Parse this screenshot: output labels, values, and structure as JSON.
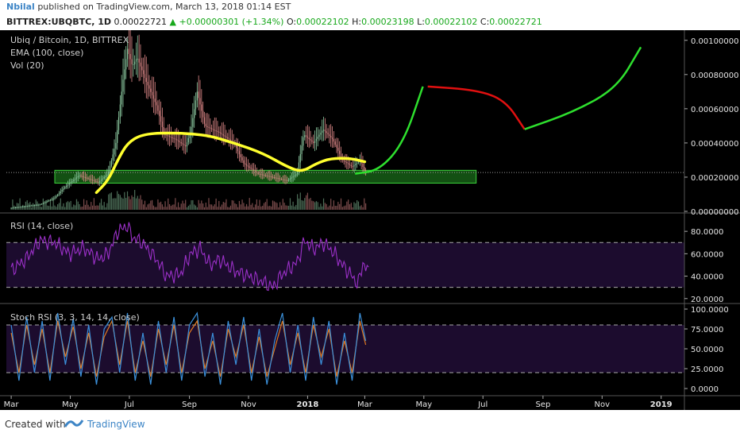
{
  "header": {
    "author": "Nbilal",
    "published_text": "published on TradingView.com, March 13, 2018 01:14 EST",
    "symbol": "BITTREX:UBQBTC, 1D",
    "last": "0.00022721",
    "change": "+0.00000301 (+1.34%)",
    "open_label": "O:",
    "open": "0.00022102",
    "high_label": "H:",
    "high": "0.00023198",
    "low_label": "L:",
    "low": "0.00022102",
    "close_label": "C:",
    "close": "0.00022721"
  },
  "footer": {
    "created_with": "Created with",
    "brand": "TradingView"
  },
  "colors": {
    "background": "#000000",
    "candle_up": "#8cc9a0",
    "candle_down": "#e08a8a",
    "ema": "#ffff2e",
    "box_fill": "#1a6b1a",
    "box_stroke": "#3cd33c",
    "projection_up": "#2ee02e",
    "projection_down": "#e01010",
    "rsi": "#9b30c8",
    "stoch_k": "#3b8fd9",
    "stoch_d": "#e07820",
    "band": "#1c0c2e"
  },
  "chart_data": [
    {
      "type": "candlestick",
      "title": "Ubiq / Bitcoin, 1D, BITTREX",
      "indicators": [
        "EMA (100, close)",
        "Vol (20)"
      ],
      "ytick_labels": [
        "0.00100000",
        "0.00080000",
        "0.00060000",
        "0.00040000",
        "0.00020000",
        "0.00000000"
      ],
      "ylim": [
        0,
        0.00105
      ],
      "last_price": 0.00022721,
      "x_tick_labels": [
        "Mar",
        "May",
        "Jul",
        "Sep",
        "Nov",
        "2018",
        "Mar",
        "May",
        "Jul",
        "Sep",
        "Nov",
        "2019"
      ],
      "x_ticks_days": [
        0,
        61,
        122,
        184,
        245,
        306,
        365,
        426,
        487,
        549,
        610,
        671
      ],
      "xlim_days": [
        -5,
        695
      ],
      "price_close": [
        [
          0,
          2e-05
        ],
        [
          30,
          4e-05
        ],
        [
          45,
          8e-05
        ],
        [
          55,
          0.00014
        ],
        [
          70,
          0.00021
        ],
        [
          90,
          0.00017
        ],
        [
          100,
          0.00022
        ],
        [
          108,
          0.0004
        ],
        [
          115,
          0.00075
        ],
        [
          120,
          0.00095
        ],
        [
          125,
          0.00085
        ],
        [
          130,
          0.0009
        ],
        [
          140,
          0.00075
        ],
        [
          150,
          0.00062
        ],
        [
          158,
          0.00045
        ],
        [
          170,
          0.00042
        ],
        [
          180,
          0.00038
        ],
        [
          185,
          0.00046
        ],
        [
          192,
          0.0007
        ],
        [
          200,
          0.0005
        ],
        [
          215,
          0.00046
        ],
        [
          230,
          0.0004
        ],
        [
          240,
          0.00028
        ],
        [
          255,
          0.00022
        ],
        [
          270,
          0.0002
        ],
        [
          285,
          0.00018
        ],
        [
          295,
          0.00022
        ],
        [
          302,
          0.00045
        ],
        [
          312,
          0.0004
        ],
        [
          322,
          0.00048
        ],
        [
          332,
          0.00042
        ],
        [
          342,
          0.0003
        ],
        [
          352,
          0.00026
        ],
        [
          360,
          0.0003
        ],
        [
          366,
          0.00022
        ]
      ],
      "ema100": [
        [
          88,
          0.00011
        ],
        [
          100,
          0.00018
        ],
        [
          110,
          0.0003
        ],
        [
          120,
          0.0004
        ],
        [
          135,
          0.00045
        ],
        [
          160,
          0.00046
        ],
        [
          200,
          0.00045
        ],
        [
          230,
          0.0004
        ],
        [
          260,
          0.00034
        ],
        [
          285,
          0.00026
        ],
        [
          300,
          0.00023
        ],
        [
          315,
          0.00028
        ],
        [
          330,
          0.00031
        ],
        [
          350,
          0.00031
        ],
        [
          365,
          0.00029
        ]
      ],
      "support_zone": {
        "x_days": [
          45,
          480
        ],
        "y": [
          0.000165,
          0.00024
        ]
      },
      "projection_up_1": [
        [
          355,
          0.00022
        ],
        [
          380,
          0.00024
        ],
        [
          405,
          0.0004
        ],
        [
          425,
          0.00073
        ]
      ],
      "projection_down": [
        [
          430,
          0.00073
        ],
        [
          480,
          0.00071
        ],
        [
          510,
          0.00065
        ],
        [
          530,
          0.00048
        ]
      ],
      "projection_up_2": [
        [
          530,
          0.00048
        ],
        [
          580,
          0.00058
        ],
        [
          625,
          0.00072
        ],
        [
          650,
          0.00096
        ]
      ]
    },
    {
      "type": "line",
      "title": "RSI (14, close)",
      "ytick_labels": [
        "80.0000",
        "60.0000",
        "40.0000",
        "20.0000"
      ],
      "ylim": [
        17,
        95
      ],
      "bands": [
        30,
        70
      ],
      "series": [
        {
          "values": [
            [
              0,
              45
            ],
            [
              15,
              55
            ],
            [
              30,
              72
            ],
            [
              45,
              70
            ],
            [
              60,
              60
            ],
            [
              75,
              65
            ],
            [
              90,
              55
            ],
            [
              100,
              60
            ],
            [
              110,
              80
            ],
            [
              120,
              85
            ],
            [
              125,
              75
            ],
            [
              135,
              70
            ],
            [
              150,
              55
            ],
            [
              160,
              40
            ],
            [
              175,
              42
            ],
            [
              185,
              60
            ],
            [
              195,
              65
            ],
            [
              205,
              50
            ],
            [
              215,
              55
            ],
            [
              230,
              45
            ],
            [
              245,
              40
            ],
            [
              260,
              35
            ],
            [
              270,
              30
            ],
            [
              280,
              42
            ],
            [
              295,
              52
            ],
            [
              303,
              72
            ],
            [
              312,
              64
            ],
            [
              322,
              70
            ],
            [
              332,
              62
            ],
            [
              342,
              50
            ],
            [
              352,
              40
            ],
            [
              358,
              32
            ],
            [
              363,
              52
            ],
            [
              370,
              42
            ]
          ]
        }
      ]
    },
    {
      "type": "line",
      "title": "Stoch RSI (3, 3, 14, 14, close)",
      "ytick_labels": [
        "100.0000",
        "75.0000",
        "50.0000",
        "25.0000",
        "0.0000"
      ],
      "ylim": [
        -5,
        105
      ],
      "bands": [
        20,
        80
      ],
      "series": [
        {
          "values": [
            [
              0,
              80
            ],
            [
              8,
              10
            ],
            [
              16,
              90
            ],
            [
              24,
              20
            ],
            [
              32,
              85
            ],
            [
              40,
              10
            ],
            [
              48,
              95
            ],
            [
              56,
              30
            ],
            [
              64,
              88
            ],
            [
              72,
              15
            ],
            [
              80,
              80
            ],
            [
              88,
              5
            ],
            [
              96,
              75
            ],
            [
              104,
              90
            ],
            [
              112,
              20
            ],
            [
              120,
              95
            ],
            [
              128,
              10
            ],
            [
              136,
              70
            ],
            [
              144,
              5
            ],
            [
              152,
              85
            ],
            [
              160,
              20
            ],
            [
              168,
              90
            ],
            [
              176,
              10
            ],
            [
              184,
              80
            ],
            [
              192,
              95
            ],
            [
              200,
              15
            ],
            [
              208,
              70
            ],
            [
              216,
              5
            ],
            [
              224,
              85
            ],
            [
              232,
              30
            ],
            [
              240,
              90
            ],
            [
              248,
              10
            ],
            [
              256,
              75
            ],
            [
              264,
              5
            ],
            [
              272,
              60
            ],
            [
              280,
              95
            ],
            [
              288,
              20
            ],
            [
              296,
              80
            ],
            [
              304,
              10
            ],
            [
              312,
              90
            ],
            [
              320,
              30
            ],
            [
              328,
              85
            ],
            [
              336,
              5
            ],
            [
              344,
              70
            ],
            [
              352,
              10
            ],
            [
              360,
              95
            ],
            [
              366,
              60
            ]
          ]
        },
        {
          "values": [
            [
              0,
              70
            ],
            [
              8,
              20
            ],
            [
              16,
              80
            ],
            [
              24,
              30
            ],
            [
              32,
              75
            ],
            [
              40,
              20
            ],
            [
              48,
              85
            ],
            [
              56,
              40
            ],
            [
              64,
              78
            ],
            [
              72,
              25
            ],
            [
              80,
              70
            ],
            [
              88,
              15
            ],
            [
              96,
              65
            ],
            [
              104,
              85
            ],
            [
              112,
              30
            ],
            [
              120,
              85
            ],
            [
              128,
              20
            ],
            [
              136,
              60
            ],
            [
              144,
              15
            ],
            [
              152,
              75
            ],
            [
              160,
              30
            ],
            [
              168,
              80
            ],
            [
              176,
              20
            ],
            [
              184,
              70
            ],
            [
              192,
              85
            ],
            [
              200,
              25
            ],
            [
              208,
              60
            ],
            [
              216,
              15
            ],
            [
              224,
              75
            ],
            [
              232,
              40
            ],
            [
              240,
              80
            ],
            [
              248,
              20
            ],
            [
              256,
              65
            ],
            [
              264,
              15
            ],
            [
              272,
              50
            ],
            [
              280,
              85
            ],
            [
              288,
              30
            ],
            [
              296,
              70
            ],
            [
              304,
              20
            ],
            [
              312,
              80
            ],
            [
              320,
              40
            ],
            [
              328,
              75
            ],
            [
              336,
              15
            ],
            [
              344,
              60
            ],
            [
              352,
              20
            ],
            [
              360,
              85
            ],
            [
              366,
              55
            ]
          ]
        }
      ]
    }
  ]
}
